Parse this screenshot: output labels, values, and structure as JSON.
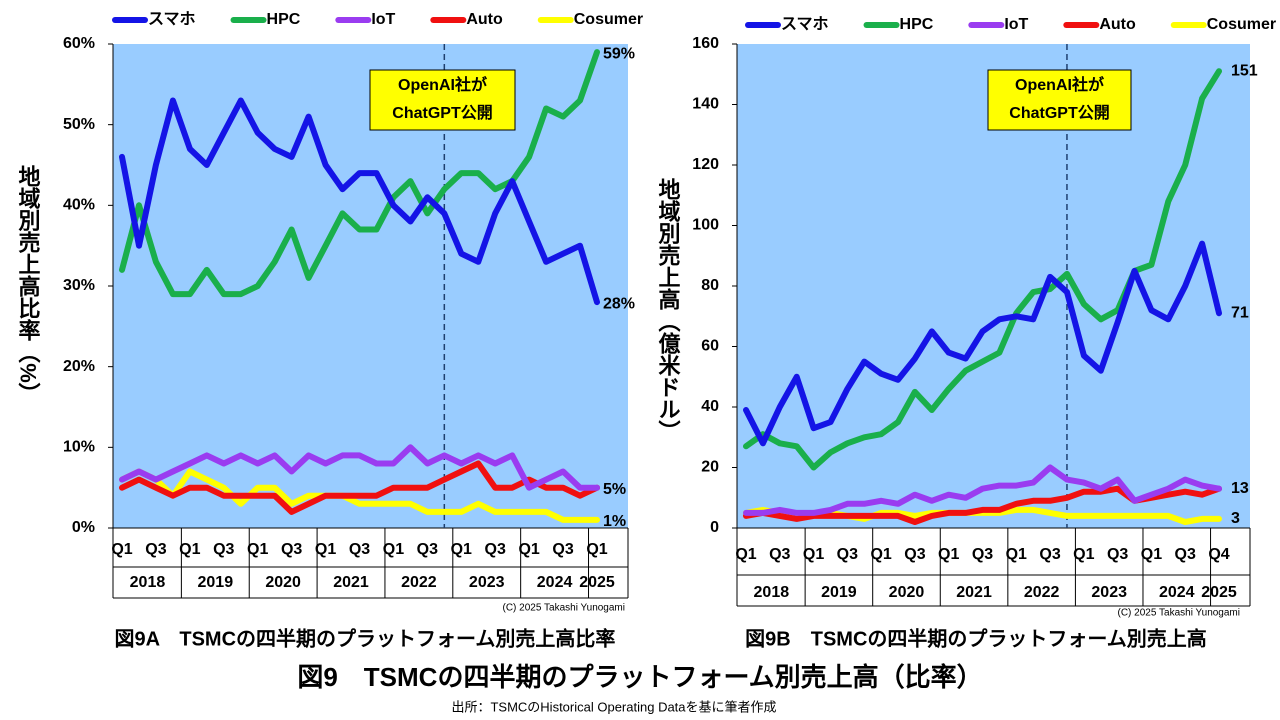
{
  "chart_data": [
    {
      "type": "line",
      "title": "図9A　TSMCの四半期のプラットフォーム別売上高比率",
      "ylabel": "地域別売上高比率（%）",
      "credit": "(C) 2025 Takashi Yunogami",
      "categories": [
        "Q1",
        null,
        "Q3",
        null,
        "Q1",
        null,
        "Q3",
        null,
        "Q1",
        null,
        "Q3",
        null,
        "Q1",
        null,
        "Q3",
        null,
        "Q1",
        null,
        "Q3",
        null,
        "Q1",
        null,
        "Q3",
        null,
        "Q1",
        null,
        "Q3",
        null,
        "Q1"
      ],
      "years": [
        "2018",
        "2019",
        "2020",
        "2021",
        "2022",
        "2023",
        "2024",
        "2025"
      ],
      "ylim": [
        0,
        60
      ],
      "yticks": [
        {
          "value": 0,
          "label": "0%"
        },
        {
          "value": 10,
          "label": "10%"
        },
        {
          "value": 20,
          "label": "20%"
        },
        {
          "value": 30,
          "label": "30%"
        },
        {
          "value": 40,
          "label": "40%"
        },
        {
          "value": 50,
          "label": "50%"
        },
        {
          "value": 60,
          "label": "60%"
        }
      ],
      "annotation": {
        "text": [
          "OpenAI社が",
          "ChatGPT公開"
        ],
        "event_index": 19
      },
      "series": [
        {
          "name": "スマホ",
          "color": "#1414e6",
          "values": [
            46,
            35,
            45,
            53,
            47,
            45,
            49,
            53,
            49,
            47,
            46,
            51,
            45,
            42,
            44,
            44,
            40,
            38,
            41,
            39,
            34,
            33,
            39,
            43,
            38,
            33,
            34,
            35,
            28
          ],
          "value_labels": [
            null,
            null,
            null,
            null,
            null,
            null,
            null,
            null,
            null,
            null,
            null,
            null,
            null,
            null,
            null,
            null,
            null,
            null,
            null,
            null,
            null,
            null,
            null,
            null,
            null,
            null,
            null,
            null,
            "28%"
          ]
        },
        {
          "name": "HPC",
          "color": "#1aaf4b",
          "values": [
            32,
            40,
            33,
            29,
            29,
            32,
            29,
            29,
            30,
            33,
            37,
            31,
            35,
            39,
            37,
            37,
            41,
            43,
            39,
            42,
            44,
            44,
            42,
            43,
            46,
            52,
            51,
            53,
            59
          ],
          "value_labels": [
            null,
            null,
            null,
            null,
            null,
            null,
            null,
            null,
            null,
            null,
            null,
            null,
            null,
            null,
            null,
            null,
            null,
            null,
            null,
            null,
            null,
            null,
            null,
            null,
            null,
            null,
            null,
            null,
            "59%"
          ]
        },
        {
          "name": "IoT",
          "color": "#9a3cf0",
          "values": [
            6,
            7,
            6,
            7,
            8,
            9,
            8,
            9,
            8,
            9,
            7,
            9,
            8,
            9,
            9,
            8,
            8,
            10,
            8,
            9,
            8,
            9,
            8,
            9,
            5,
            6,
            7,
            5,
            5
          ]
        },
        {
          "name": "Auto",
          "color": "#f01010",
          "values": [
            5,
            6,
            5,
            4,
            5,
            5,
            4,
            4,
            4,
            4,
            2,
            3,
            4,
            4,
            4,
            4,
            5,
            5,
            5,
            6,
            7,
            8,
            5,
            5,
            6,
            5,
            5,
            4,
            5
          ],
          "value_labels": [
            null,
            null,
            null,
            null,
            null,
            null,
            null,
            null,
            null,
            null,
            null,
            null,
            null,
            null,
            null,
            null,
            null,
            null,
            null,
            null,
            null,
            null,
            null,
            null,
            null,
            null,
            null,
            null,
            "5%"
          ]
        },
        {
          "name": "Cosumer",
          "color": "#ffff00",
          "values": [
            6,
            7,
            6,
            4,
            7,
            6,
            5,
            3,
            5,
            5,
            3,
            4,
            4,
            4,
            3,
            3,
            3,
            3,
            2,
            2,
            2,
            3,
            2,
            2,
            2,
            2,
            1,
            1,
            1
          ],
          "value_labels": [
            null,
            null,
            null,
            null,
            null,
            null,
            null,
            null,
            null,
            null,
            null,
            null,
            null,
            null,
            null,
            null,
            null,
            null,
            null,
            null,
            null,
            null,
            null,
            null,
            null,
            null,
            null,
            null,
            "1%"
          ]
        }
      ]
    },
    {
      "type": "line",
      "title": "図9B　TSMCの四半期のプラットフォーム別売上高",
      "ylabel": "地域別売上高（億米ドル）",
      "credit": "(C) 2025 Takashi Yunogami",
      "categories": [
        "Q1",
        null,
        "Q3",
        null,
        "Q1",
        null,
        "Q3",
        null,
        "Q1",
        null,
        "Q3",
        null,
        "Q1",
        null,
        "Q3",
        null,
        "Q1",
        null,
        "Q3",
        null,
        "Q1",
        null,
        "Q3",
        null,
        "Q1",
        null,
        "Q3",
        null,
        "Q4"
      ],
      "years": [
        "2018",
        "2019",
        "2020",
        "2021",
        "2022",
        "2023",
        "2024",
        "2025"
      ],
      "ylim": [
        0,
        160
      ],
      "yticks": [
        0,
        20,
        40,
        60,
        80,
        100,
        120,
        140,
        160
      ],
      "annotation": {
        "text": [
          "OpenAI社が",
          "ChatGPT公開"
        ],
        "event_index": 19
      },
      "series": [
        {
          "name": "スマホ",
          "color": "#1414e6",
          "label_last": true,
          "values": [
            39,
            28,
            40,
            50,
            33,
            35,
            46,
            55,
            51,
            49,
            56,
            65,
            58,
            56,
            65,
            69,
            70,
            69,
            83,
            78,
            57,
            52,
            68,
            85,
            72,
            69,
            80,
            94,
            71
          ]
        },
        {
          "name": "HPC",
          "color": "#1aaf4b",
          "label_last": true,
          "values": [
            27,
            31,
            28,
            27,
            20,
            25,
            28,
            30,
            31,
            35,
            45,
            39,
            46,
            52,
            55,
            58,
            71,
            78,
            79,
            84,
            74,
            69,
            72,
            85,
            87,
            108,
            120,
            142,
            151
          ]
        },
        {
          "name": "IoT",
          "color": "#9a3cf0",
          "label_last": false,
          "values": [
            5,
            5,
            6,
            5,
            5,
            6,
            8,
            8,
            9,
            8,
            11,
            9,
            11,
            10,
            13,
            14,
            14,
            15,
            20,
            16,
            15,
            13,
            16,
            9,
            11,
            13,
            16,
            14,
            13
          ]
        },
        {
          "name": "Auto",
          "color": "#f01010",
          "label_last": true,
          "values": [
            4,
            5,
            4,
            3,
            4,
            4,
            4,
            4,
            4,
            4,
            2,
            4,
            5,
            5,
            6,
            6,
            8,
            9,
            9,
            10,
            12,
            12,
            13,
            9,
            10,
            11,
            12,
            11,
            13
          ]
        },
        {
          "name": "Cosumer",
          "color": "#ffff00",
          "label_last": true,
          "values": [
            5,
            6,
            5,
            4,
            5,
            5,
            4,
            3,
            5,
            5,
            4,
            5,
            5,
            5,
            5,
            5,
            6,
            6,
            5,
            4,
            4,
            4,
            4,
            4,
            4,
            4,
            2,
            3,
            3
          ]
        }
      ]
    }
  ],
  "figure_title": "図9　TSMCの四半期のプラットフォーム別売上高（比率）",
  "source": "出所：TSMCのHistorical Operating Dataを基に筆者作成"
}
